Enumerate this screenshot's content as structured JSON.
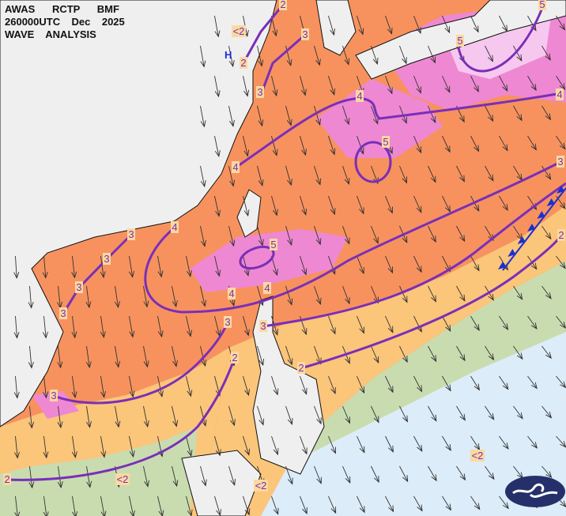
{
  "header": {
    "line1": "AWAS      RCTP      BMF",
    "line2": "260000UTC    Dec    2025",
    "line3": "WAVE    ANALYSIS"
  },
  "pressure_center": "H",
  "contour_labels": [
    "2",
    "<2",
    "3",
    "2",
    "3",
    "5",
    "5",
    "4",
    "4",
    "5",
    "4",
    "3",
    "3",
    "4",
    "3",
    "5",
    "3",
    "3",
    "4",
    "4",
    "2",
    "3",
    "3",
    "2",
    "2",
    "3",
    "<2",
    "<2",
    "<2",
    "2"
  ],
  "colors": {
    "land": "#efefef",
    "wave_lt2": "#dcecf8",
    "wave_2": "#c9dcb0",
    "wave_3": "#fbc57a",
    "wave_4": "#f7925e",
    "wave_5": "#ee88d2",
    "wave_6": "#f7c8ef",
    "contour": "#7a2fb8",
    "front": "#1a2fd0",
    "logo": "#25306a"
  },
  "logo_icon": "cwa-wave-logo"
}
